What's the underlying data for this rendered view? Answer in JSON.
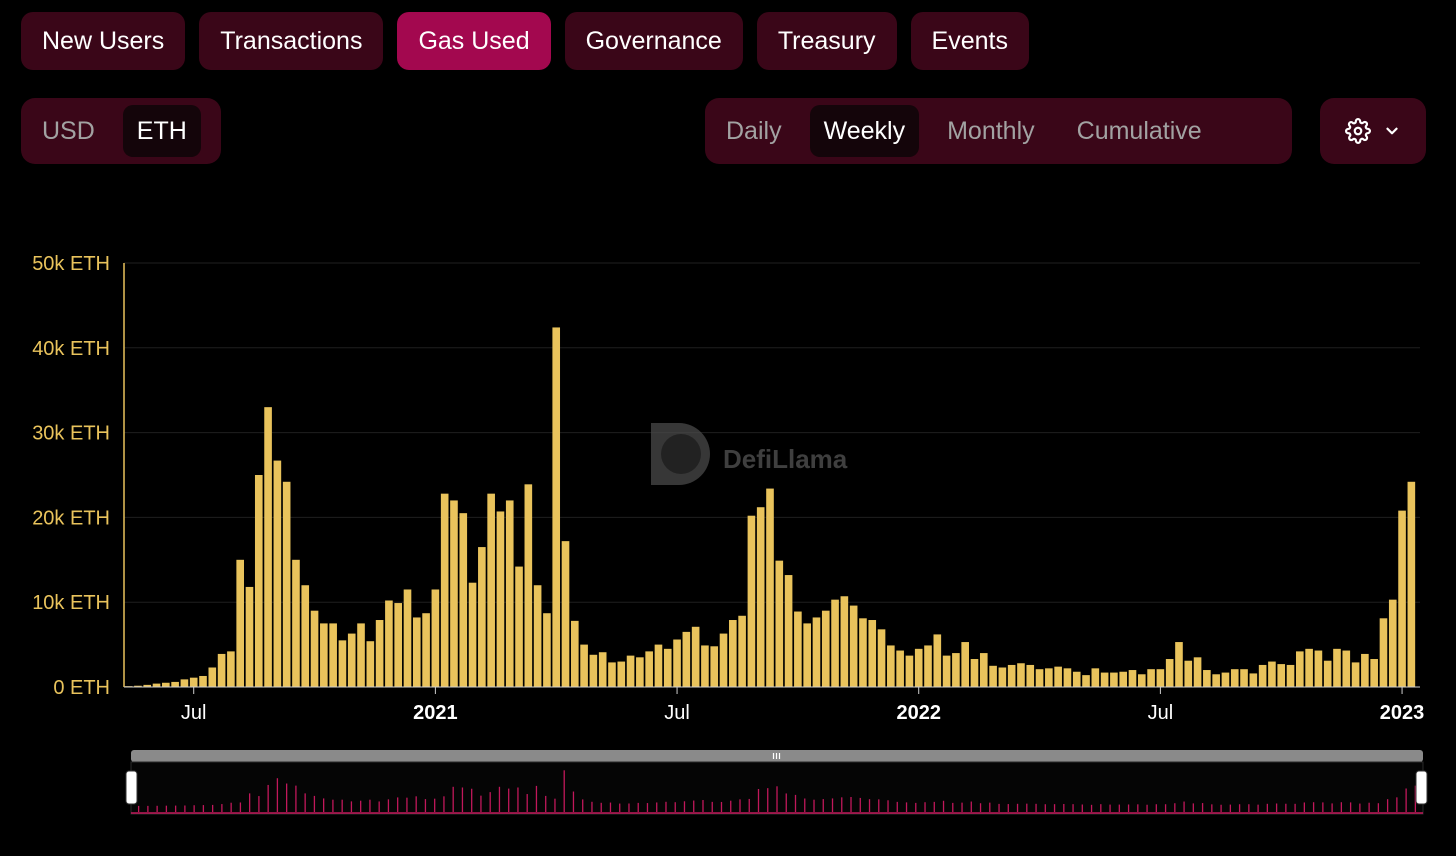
{
  "tabs": [
    {
      "label": "New Users",
      "active": false
    },
    {
      "label": "Transactions",
      "active": false
    },
    {
      "label": "Gas Used",
      "active": true
    },
    {
      "label": "Governance",
      "active": false
    },
    {
      "label": "Treasury",
      "active": false
    },
    {
      "label": "Events",
      "active": false
    }
  ],
  "currency": {
    "options": [
      "USD",
      "ETH"
    ],
    "selected": "ETH"
  },
  "period": {
    "options": [
      "Daily",
      "Weekly",
      "Monthly",
      "Cumulative"
    ],
    "selected": "Weekly"
  },
  "settings": {
    "icon": "gear-icon",
    "chevron": "chevron-down-icon"
  },
  "watermark": {
    "text": "DefiLlama"
  },
  "colors": {
    "bar": "#e9c35c",
    "active_tab": "#a3084f",
    "panel": "#3a0618",
    "brush": "#c2185b"
  },
  "chart_data": {
    "type": "bar",
    "title": "",
    "xlabel": "",
    "ylabel": "",
    "ylim": [
      0,
      50000
    ],
    "y_ticks": [
      "0 ETH",
      "10k ETH",
      "20k ETH",
      "30k ETH",
      "40k ETH",
      "50k ETH"
    ],
    "y_tick_values": [
      0,
      10000,
      20000,
      30000,
      40000,
      50000
    ],
    "x_ticks": [
      {
        "label": "Jul",
        "major": false,
        "week_index": 7
      },
      {
        "label": "2021",
        "major": true,
        "week_index": 33
      },
      {
        "label": "Jul",
        "major": false,
        "week_index": 59
      },
      {
        "label": "2022",
        "major": true,
        "week_index": 85
      },
      {
        "label": "Jul",
        "major": false,
        "week_index": 111
      },
      {
        "label": "2023",
        "major": true,
        "week_index": 137
      }
    ],
    "grid": true,
    "series": [
      {
        "values": [
          100,
          150,
          250,
          400,
          500,
          600,
          900,
          1100,
          1300,
          2300,
          3900,
          4200,
          15000,
          11800,
          25000,
          33000,
          26700,
          24200,
          15000,
          12000,
          9000,
          7500,
          7500,
          5500,
          6300,
          7500,
          5400,
          7900,
          10200,
          9900,
          11500,
          8200,
          8700,
          11500,
          22800,
          22000,
          20500,
          12300,
          16500,
          22800,
          20700,
          22000,
          14200,
          23900,
          12000,
          8700,
          42400,
          17200,
          7800,
          5000,
          3800,
          4100,
          2900,
          3000,
          3700,
          3500,
          4200,
          5000,
          4500,
          5600,
          6500,
          7100,
          4900,
          4800,
          6300,
          7900,
          8400,
          20200,
          21200,
          23400,
          14900,
          13200,
          8900,
          7500,
          8200,
          9000,
          10300,
          10700,
          9600,
          8100,
          7900,
          6800,
          4900,
          4300,
          3700,
          4500,
          4900,
          6200,
          3700,
          4000,
          5300,
          3300,
          4000,
          2500,
          2300,
          2600,
          2800,
          2600,
          2100,
          2200,
          2400,
          2200,
          1800,
          1400,
          2200,
          1700,
          1700,
          1800,
          2000,
          1500,
          2100,
          2100,
          3300,
          5300,
          3100,
          3500,
          2000,
          1500,
          1700,
          2100,
          2100,
          1600,
          2600,
          3000,
          2700,
          2600,
          4200,
          4500,
          4300,
          3100,
          4500,
          4300,
          2900,
          3900,
          3300,
          8100,
          10300,
          20800,
          24200
        ]
      }
    ]
  }
}
